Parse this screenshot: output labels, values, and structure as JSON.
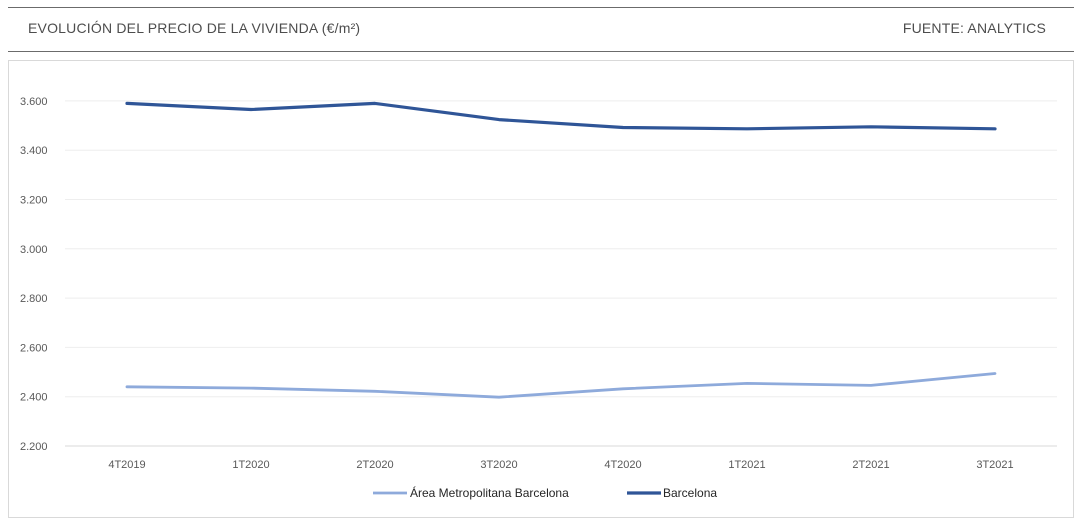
{
  "header": {
    "title": "EVOLUCIÓN DEL PRECIO DE LA VIVIENDA (€/m²)",
    "source": "FUENTE: ANALYTICS"
  },
  "chart_data": {
    "type": "line",
    "title": "EVOLUCIÓN DEL PRECIO DE LA VIVIENDA (€/m²)",
    "xlabel": "",
    "ylabel": "",
    "categories": [
      "4T2019",
      "1T2020",
      "2T2020",
      "3T2020",
      "4T2020",
      "1T2021",
      "2T2021",
      "3T2021"
    ],
    "ylim": [
      2200,
      3700
    ],
    "yticks": [
      2200,
      2400,
      2600,
      2800,
      3000,
      3200,
      3400,
      3600
    ],
    "ytick_labels": [
      "2.200",
      "2.400",
      "2.600",
      "2.800",
      "3.000",
      "3.200",
      "3.400",
      "3.600"
    ],
    "grid": true,
    "legend_position": "bottom",
    "series": [
      {
        "name": "Área Metropolitana Barcelona",
        "color": "#8eaadb",
        "values": [
          2440,
          2435,
          2422,
          2398,
          2432,
          2454,
          2446,
          2494
        ]
      },
      {
        "name": "Barcelona",
        "color": "#2f5597",
        "values": [
          3590,
          3565,
          3590,
          3524,
          3492,
          3487,
          3495,
          3487
        ]
      }
    ]
  }
}
